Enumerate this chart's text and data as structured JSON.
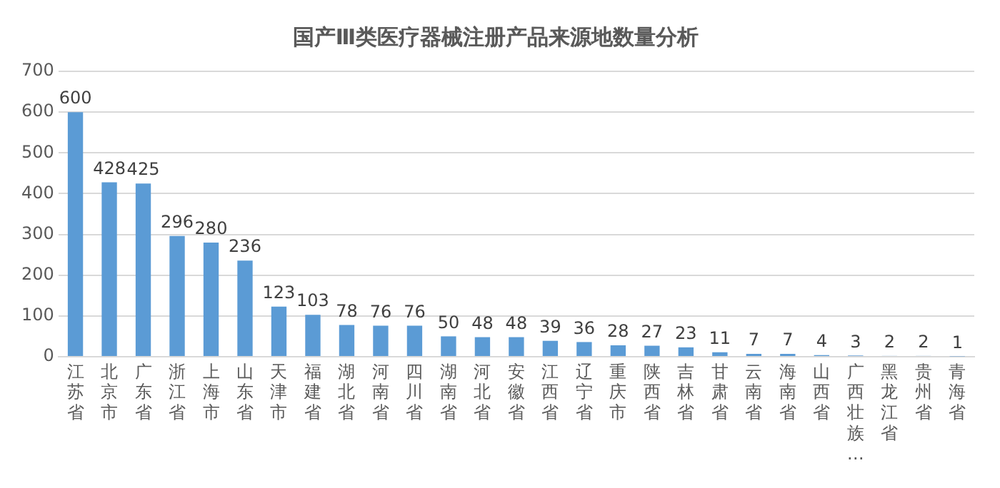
{
  "chart_data": {
    "type": "bar",
    "title": "国产Ⅲ类医疗器械注册产品来源地数量分析",
    "categories": [
      "江苏省",
      "北京市",
      "广东省",
      "浙江省",
      "上海市",
      "山东省",
      "天津市",
      "福建省",
      "湖北省",
      "河南省",
      "四川省",
      "湖南省",
      "河北省",
      "安徽省",
      "江西省",
      "辽宁省",
      "重庆市",
      "陕西省",
      "吉林省",
      "甘肃省",
      "云南省",
      "海南省",
      "山西省",
      "广西壮族…",
      "黑龙江省",
      "贵州省",
      "青海省"
    ],
    "values": [
      600,
      428,
      425,
      296,
      280,
      236,
      123,
      103,
      78,
      76,
      76,
      50,
      48,
      48,
      39,
      36,
      28,
      27,
      23,
      11,
      7,
      7,
      4,
      3,
      2,
      2,
      1
    ],
    "color": "#5b9bd5",
    "ylim": [
      0,
      700
    ],
    "yticks": [
      0,
      100,
      200,
      300,
      400,
      500,
      600,
      700
    ],
    "grid": "y",
    "data_labels": true,
    "legend": false
  }
}
